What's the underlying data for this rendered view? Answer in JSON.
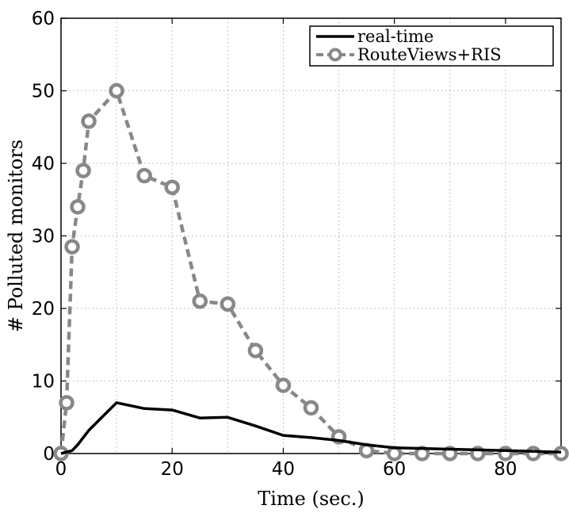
{
  "chart_data": {
    "type": "line",
    "title": "",
    "xlabel": "Time (sec.)",
    "ylabel": "# Polluted monitors",
    "xlim": [
      0,
      90
    ],
    "ylim": [
      0,
      60
    ],
    "xticks": [
      0,
      20,
      40,
      60,
      80
    ],
    "yticks": [
      0,
      10,
      20,
      30,
      40,
      50,
      60
    ],
    "grid": true,
    "legend_position": "top-right",
    "series": [
      {
        "name": "real-time",
        "color": "#000000",
        "style": "solid",
        "marker": "none",
        "points": [
          [
            0,
            0
          ],
          [
            2,
            0.4
          ],
          [
            3,
            1.2
          ],
          [
            5,
            3.2
          ],
          [
            10,
            7
          ],
          [
            15,
            6.2
          ],
          [
            20,
            6
          ],
          [
            25,
            4.9
          ],
          [
            30,
            5
          ],
          [
            35,
            3.8
          ],
          [
            40,
            2.5
          ],
          [
            45,
            2.2
          ],
          [
            50,
            1.8
          ],
          [
            55,
            1.2
          ],
          [
            60,
            0.8
          ],
          [
            65,
            0.7
          ],
          [
            70,
            0.6
          ],
          [
            75,
            0.5
          ],
          [
            80,
            0.4
          ],
          [
            85,
            0.3
          ],
          [
            90,
            0.2
          ]
        ]
      },
      {
        "name": "RouteViews+RIS",
        "color": "#888888",
        "style": "dashed",
        "marker": "circle",
        "points": [
          [
            0,
            0
          ],
          [
            1,
            7
          ],
          [
            2,
            28.5
          ],
          [
            3,
            34
          ],
          [
            4,
            39
          ],
          [
            5,
            45.8
          ],
          [
            10,
            50
          ],
          [
            15,
            38.3
          ],
          [
            20,
            36.7
          ],
          [
            25,
            21
          ],
          [
            30,
            20.6
          ],
          [
            35,
            14.2
          ],
          [
            40,
            9.4
          ],
          [
            45,
            6.3
          ],
          [
            50,
            2.3
          ],
          [
            55,
            0.4
          ],
          [
            60,
            0
          ],
          [
            65,
            0
          ],
          [
            70,
            0
          ],
          [
            75,
            0
          ],
          [
            80,
            0
          ],
          [
            85,
            0
          ],
          [
            90,
            0
          ]
        ]
      }
    ]
  }
}
